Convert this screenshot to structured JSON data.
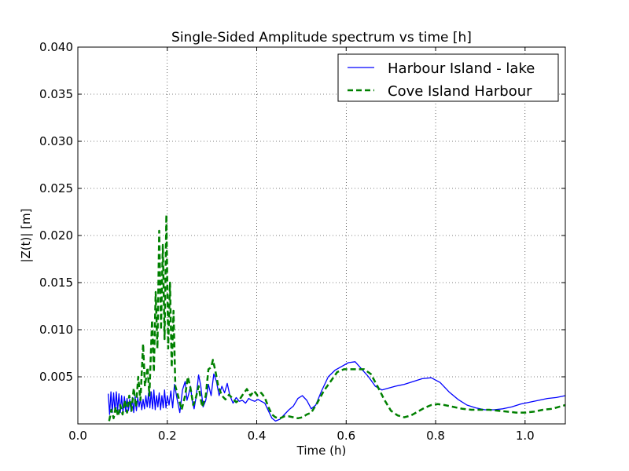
{
  "chart_data": {
    "type": "line",
    "title": "Single-Sided Amplitude spectrum vs time [h]",
    "xlabel": "Time (h)",
    "ylabel": "|Z(t)| [m]",
    "xlim": [
      0.0,
      1.09
    ],
    "ylim": [
      0.0,
      0.04
    ],
    "x_ticks": [
      "0.0",
      "0.2",
      "0.4",
      "0.6",
      "0.8",
      "1.0"
    ],
    "x_tick_values": [
      0.0,
      0.2,
      0.4,
      0.6,
      0.8,
      1.0
    ],
    "y_ticks": [
      "0.005",
      "0.010",
      "0.015",
      "0.020",
      "0.025",
      "0.030",
      "0.035",
      "0.040"
    ],
    "y_tick_values": [
      0.005,
      0.01,
      0.015,
      0.02,
      0.025,
      0.03,
      0.035,
      0.04
    ],
    "grid": true,
    "legend_position": "top-right",
    "series": [
      {
        "name": "Harbour Island - lake",
        "color": "#0000ff",
        "style": "solid",
        "points": [
          [
            0.068,
            0.0032
          ],
          [
            0.071,
            0.001
          ],
          [
            0.074,
            0.0034
          ],
          [
            0.077,
            0.0012
          ],
          [
            0.08,
            0.0033
          ],
          [
            0.083,
            0.0013
          ],
          [
            0.086,
            0.0034
          ],
          [
            0.089,
            0.0014
          ],
          [
            0.092,
            0.0032
          ],
          [
            0.095,
            0.0012
          ],
          [
            0.098,
            0.003
          ],
          [
            0.101,
            0.0012
          ],
          [
            0.104,
            0.0029
          ],
          [
            0.107,
            0.0013
          ],
          [
            0.11,
            0.0027
          ],
          [
            0.113,
            0.0014
          ],
          [
            0.116,
            0.0026
          ],
          [
            0.119,
            0.0013
          ],
          [
            0.122,
            0.0028
          ],
          [
            0.125,
            0.0012
          ],
          [
            0.128,
            0.0029
          ],
          [
            0.131,
            0.0014
          ],
          [
            0.134,
            0.0028
          ],
          [
            0.137,
            0.0018
          ],
          [
            0.14,
            0.0027
          ],
          [
            0.143,
            0.0015
          ],
          [
            0.146,
            0.0026
          ],
          [
            0.149,
            0.0016
          ],
          [
            0.152,
            0.003
          ],
          [
            0.155,
            0.0018
          ],
          [
            0.158,
            0.0033
          ],
          [
            0.161,
            0.0017
          ],
          [
            0.164,
            0.0034
          ],
          [
            0.167,
            0.0016
          ],
          [
            0.17,
            0.0036
          ],
          [
            0.173,
            0.0015
          ],
          [
            0.176,
            0.003
          ],
          [
            0.179,
            0.0018
          ],
          [
            0.182,
            0.0033
          ],
          [
            0.185,
            0.0015
          ],
          [
            0.188,
            0.003
          ],
          [
            0.191,
            0.0017
          ],
          [
            0.194,
            0.0036
          ],
          [
            0.197,
            0.0017
          ],
          [
            0.2,
            0.003
          ],
          [
            0.204,
            0.002
          ],
          [
            0.208,
            0.0035
          ],
          [
            0.212,
            0.0017
          ],
          [
            0.216,
            0.0042
          ],
          [
            0.222,
            0.0026
          ],
          [
            0.228,
            0.0012
          ],
          [
            0.234,
            0.0036
          ],
          [
            0.24,
            0.0045
          ],
          [
            0.244,
            0.0025
          ],
          [
            0.248,
            0.0032
          ],
          [
            0.252,
            0.004
          ],
          [
            0.256,
            0.0024
          ],
          [
            0.26,
            0.0016
          ],
          [
            0.265,
            0.003
          ],
          [
            0.27,
            0.0052
          ],
          [
            0.275,
            0.004
          ],
          [
            0.28,
            0.0018
          ],
          [
            0.286,
            0.0025
          ],
          [
            0.292,
            0.0042
          ],
          [
            0.298,
            0.003
          ],
          [
            0.304,
            0.0053
          ],
          [
            0.31,
            0.0045
          ],
          [
            0.316,
            0.003
          ],
          [
            0.322,
            0.004
          ],
          [
            0.328,
            0.0033
          ],
          [
            0.334,
            0.0043
          ],
          [
            0.34,
            0.003
          ],
          [
            0.347,
            0.0022
          ],
          [
            0.354,
            0.0028
          ],
          [
            0.361,
            0.0024
          ],
          [
            0.368,
            0.0025
          ],
          [
            0.375,
            0.0022
          ],
          [
            0.382,
            0.0027
          ],
          [
            0.389,
            0.0025
          ],
          [
            0.396,
            0.0024
          ],
          [
            0.403,
            0.0026
          ],
          [
            0.41,
            0.0024
          ],
          [
            0.418,
            0.0022
          ],
          [
            0.426,
            0.0014
          ],
          [
            0.434,
            0.0006
          ],
          [
            0.442,
            0.0003
          ],
          [
            0.452,
            0.0005
          ],
          [
            0.462,
            0.001
          ],
          [
            0.472,
            0.0015
          ],
          [
            0.482,
            0.0019
          ],
          [
            0.492,
            0.0027
          ],
          [
            0.502,
            0.003
          ],
          [
            0.512,
            0.0025
          ],
          [
            0.522,
            0.0016
          ],
          [
            0.532,
            0.002
          ],
          [
            0.545,
            0.0035
          ],
          [
            0.56,
            0.005
          ],
          [
            0.575,
            0.0057
          ],
          [
            0.59,
            0.0061
          ],
          [
            0.605,
            0.0065
          ],
          [
            0.62,
            0.0066
          ],
          [
            0.635,
            0.0058
          ],
          [
            0.65,
            0.005
          ],
          [
            0.665,
            0.004
          ],
          [
            0.68,
            0.0036
          ],
          [
            0.695,
            0.0038
          ],
          [
            0.71,
            0.004
          ],
          [
            0.73,
            0.0042
          ],
          [
            0.75,
            0.0045
          ],
          [
            0.77,
            0.0048
          ],
          [
            0.79,
            0.0049
          ],
          [
            0.81,
            0.0044
          ],
          [
            0.83,
            0.0034
          ],
          [
            0.85,
            0.0026
          ],
          [
            0.87,
            0.002
          ],
          [
            0.89,
            0.0017
          ],
          [
            0.91,
            0.0015
          ],
          [
            0.93,
            0.0015
          ],
          [
            0.95,
            0.0016
          ],
          [
            0.97,
            0.0018
          ],
          [
            0.99,
            0.0021
          ],
          [
            1.01,
            0.0023
          ],
          [
            1.03,
            0.0025
          ],
          [
            1.05,
            0.0027
          ],
          [
            1.07,
            0.0028
          ],
          [
            1.09,
            0.003
          ]
        ]
      },
      {
        "name": "Cove Island Harbour",
        "color": "#008000",
        "style": "dashed",
        "points": [
          [
            0.07,
            0.0003
          ],
          [
            0.075,
            0.0015
          ],
          [
            0.08,
            0.0006
          ],
          [
            0.085,
            0.0018
          ],
          [
            0.09,
            0.0008
          ],
          [
            0.095,
            0.002
          ],
          [
            0.1,
            0.001
          ],
          [
            0.105,
            0.0025
          ],
          [
            0.11,
            0.0012
          ],
          [
            0.115,
            0.003
          ],
          [
            0.12,
            0.0014
          ],
          [
            0.125,
            0.0038
          ],
          [
            0.13,
            0.0018
          ],
          [
            0.135,
            0.005
          ],
          [
            0.14,
            0.0025
          ],
          [
            0.146,
            0.0085
          ],
          [
            0.15,
            0.004
          ],
          [
            0.156,
            0.006
          ],
          [
            0.16,
            0.003
          ],
          [
            0.166,
            0.011
          ],
          [
            0.17,
            0.0055
          ],
          [
            0.174,
            0.014
          ],
          [
            0.178,
            0.008
          ],
          [
            0.182,
            0.0205
          ],
          [
            0.186,
            0.01
          ],
          [
            0.19,
            0.019
          ],
          [
            0.194,
            0.009
          ],
          [
            0.198,
            0.0222
          ],
          [
            0.202,
            0.008
          ],
          [
            0.206,
            0.015
          ],
          [
            0.21,
            0.006
          ],
          [
            0.214,
            0.012
          ],
          [
            0.218,
            0.004
          ],
          [
            0.224,
            0.003
          ],
          [
            0.232,
            0.0015
          ],
          [
            0.24,
            0.003
          ],
          [
            0.246,
            0.005
          ],
          [
            0.252,
            0.0038
          ],
          [
            0.258,
            0.002
          ],
          [
            0.264,
            0.0028
          ],
          [
            0.27,
            0.004
          ],
          [
            0.278,
            0.0018
          ],
          [
            0.286,
            0.003
          ],
          [
            0.292,
            0.0058
          ],
          [
            0.298,
            0.006
          ],
          [
            0.302,
            0.0068
          ],
          [
            0.308,
            0.0055
          ],
          [
            0.314,
            0.004
          ],
          [
            0.322,
            0.003
          ],
          [
            0.33,
            0.0026
          ],
          [
            0.338,
            0.0031
          ],
          [
            0.346,
            0.0027
          ],
          [
            0.354,
            0.0023
          ],
          [
            0.362,
            0.0026
          ],
          [
            0.37,
            0.0032
          ],
          [
            0.378,
            0.0037
          ],
          [
            0.386,
            0.003
          ],
          [
            0.394,
            0.0035
          ],
          [
            0.402,
            0.003
          ],
          [
            0.41,
            0.0033
          ],
          [
            0.418,
            0.0028
          ],
          [
            0.426,
            0.0018
          ],
          [
            0.434,
            0.001
          ],
          [
            0.442,
            0.0007
          ],
          [
            0.452,
            0.0006
          ],
          [
            0.462,
            0.0008
          ],
          [
            0.472,
            0.0008
          ],
          [
            0.482,
            0.0007
          ],
          [
            0.492,
            0.0006
          ],
          [
            0.502,
            0.0007
          ],
          [
            0.512,
            0.001
          ],
          [
            0.522,
            0.0012
          ],
          [
            0.535,
            0.0022
          ],
          [
            0.55,
            0.0035
          ],
          [
            0.565,
            0.0045
          ],
          [
            0.58,
            0.0055
          ],
          [
            0.595,
            0.0058
          ],
          [
            0.61,
            0.0058
          ],
          [
            0.625,
            0.0058
          ],
          [
            0.64,
            0.0058
          ],
          [
            0.655,
            0.0053
          ],
          [
            0.67,
            0.004
          ],
          [
            0.685,
            0.0026
          ],
          [
            0.7,
            0.0014
          ],
          [
            0.715,
            0.0009
          ],
          [
            0.73,
            0.0007
          ],
          [
            0.745,
            0.0009
          ],
          [
            0.76,
            0.0013
          ],
          [
            0.775,
            0.0017
          ],
          [
            0.79,
            0.002
          ],
          [
            0.805,
            0.0021
          ],
          [
            0.82,
            0.002
          ],
          [
            0.84,
            0.0018
          ],
          [
            0.86,
            0.0016
          ],
          [
            0.88,
            0.0015
          ],
          [
            0.9,
            0.0015
          ],
          [
            0.92,
            0.0015
          ],
          [
            0.94,
            0.0014
          ],
          [
            0.96,
            0.0013
          ],
          [
            0.98,
            0.0012
          ],
          [
            1.0,
            0.0012
          ],
          [
            1.02,
            0.0013
          ],
          [
            1.04,
            0.0015
          ],
          [
            1.06,
            0.0016
          ],
          [
            1.075,
            0.0018
          ],
          [
            1.09,
            0.002
          ]
        ]
      }
    ]
  }
}
